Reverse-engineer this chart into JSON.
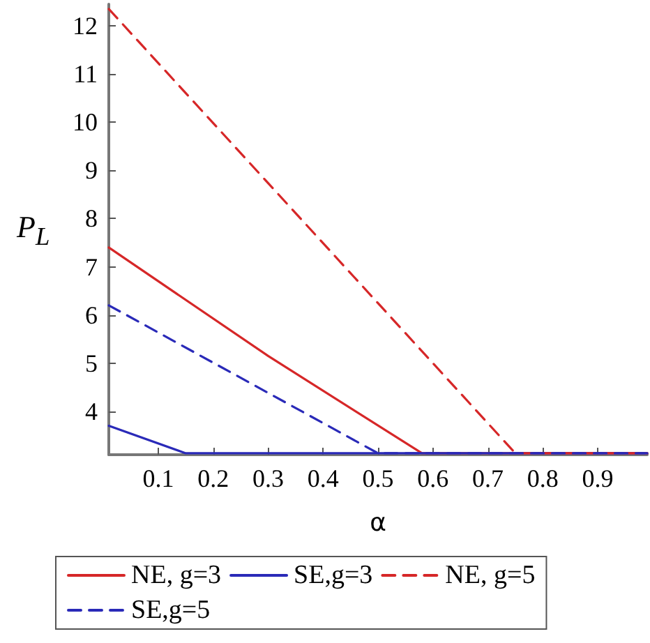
{
  "chart_data": {
    "type": "line",
    "xlabel": "α",
    "ylabel": "P$_{L}$",
    "xlim": [
      0.01,
      0.99
    ],
    "xticks": [
      0.1,
      0.2,
      0.3,
      0.4,
      0.5,
      0.6,
      0.7,
      0.8,
      0.9
    ],
    "ylim": [
      3.1,
      12.45
    ],
    "yticks": [
      4,
      5,
      6,
      7,
      8,
      9,
      10,
      11,
      12
    ],
    "grid": false,
    "legend": "bottom",
    "marker": "none",
    "series": [
      {
        "name": "NE, g=3",
        "color": "#d62728",
        "line_style": "solid",
        "x": [
          0.01,
          0.3,
          0.58,
          0.99
        ],
        "values": [
          7.4,
          5.15,
          3.13,
          3.13
        ]
      },
      {
        "name": "SE,g=3",
        "color": "#2a2ab8",
        "line_style": "solid",
        "x": [
          0.01,
          0.15,
          0.99
        ],
        "values": [
          3.7,
          3.13,
          3.13
        ]
      },
      {
        "name": "NE, g=5",
        "color": "#d62728",
        "line_style": "dashed",
        "x": [
          0.01,
          0.75,
          0.99
        ],
        "values": [
          12.35,
          3.13,
          3.13
        ]
      },
      {
        "name": "SE,g=5",
        "color": "#2a2ab8",
        "line_style": "dashed",
        "x": [
          0.01,
          0.5,
          0.99
        ],
        "values": [
          6.2,
          3.13,
          3.13
        ]
      }
    ]
  }
}
